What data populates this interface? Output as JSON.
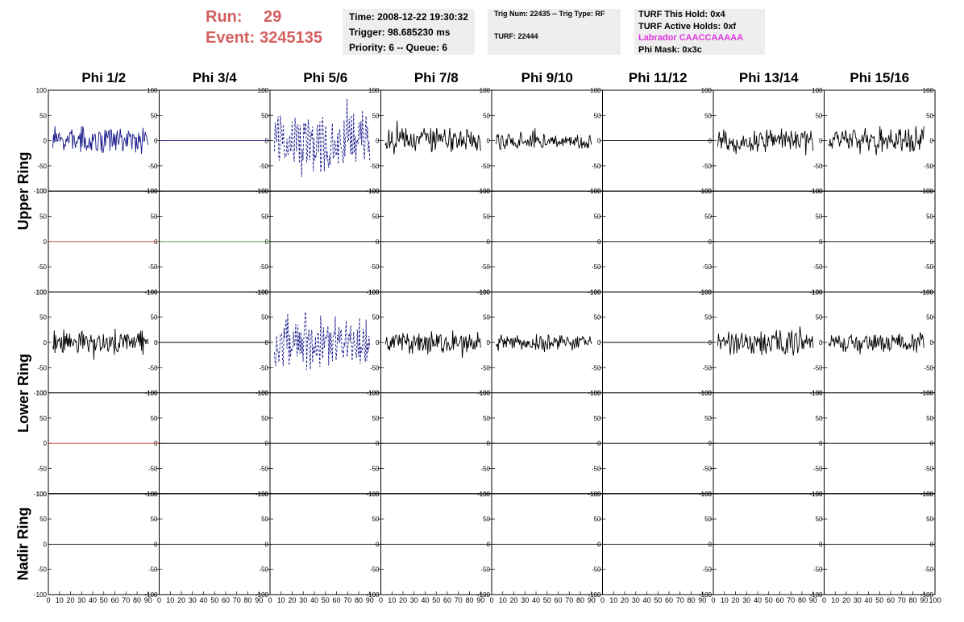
{
  "header": {
    "run_label": "Run:",
    "run_value": "29",
    "event_label": "Event:",
    "event_value": "3245135",
    "time": "Time: 2008-12-22 19:30:32",
    "trigger": "Trigger: 98.685230 ms",
    "priority": "Priority: 6 -- Queue: 6",
    "trig_num": "Trig Num: 22435 -- Trig Type: RF",
    "turf": "TURF: 22444",
    "turf_this_hold": "TURF This Hold: 0x4",
    "turf_active_holds": "TURF Active Holds: 0xf",
    "labrador": "Labrador CAACCAAAAA",
    "phi_mask": "Phi Mask: 0x3c"
  },
  "columns": [
    "Phi 1/2",
    "Phi 3/4",
    "Phi 5/6",
    "Phi 7/8",
    "Phi 9/10",
    "Phi 11/12",
    "Phi 13/14",
    "Phi 15/16"
  ],
  "rings": [
    "Upper Ring",
    "Lower Ring",
    "Nadir Ring"
  ],
  "colors": {
    "title_red": "#d35f5f",
    "labrador_magenta": "#e033e0",
    "trace_blue": "#1a1a8c",
    "trace_red": "#c83232",
    "trace_green": "#32a032",
    "trace_black": "#000000",
    "info_box_bg": "#eeeeee"
  },
  "chart_data": {
    "type": "line",
    "grid_rows": 5,
    "grid_cols": 8,
    "ylim": [
      -100,
      100
    ],
    "xlim": [
      0,
      100
    ],
    "y_ticks": [
      "100",
      "50",
      "0",
      "-50",
      "-100"
    ],
    "x_ticks": [
      "0",
      "10",
      "20",
      "30",
      "40",
      "50",
      "60",
      "70",
      "80",
      "90",
      "100"
    ],
    "panels": [
      {
        "row": 0,
        "col": 0,
        "style": "noise",
        "amplitude": 30,
        "color": "#1a1a8c"
      },
      {
        "row": 0,
        "col": 1,
        "style": "flat",
        "color": "#1a1a8c"
      },
      {
        "row": 0,
        "col": 2,
        "style": "dashed-noise",
        "amplitude": 70,
        "color": "#1a1a8c"
      },
      {
        "row": 0,
        "col": 3,
        "style": "noise",
        "amplitude": 28,
        "color": "#000000"
      },
      {
        "row": 0,
        "col": 4,
        "style": "noise",
        "amplitude": 18,
        "color": "#000000"
      },
      {
        "row": 0,
        "col": 5,
        "style": "flat",
        "color": "#000000"
      },
      {
        "row": 0,
        "col": 6,
        "style": "noise",
        "amplitude": 25,
        "color": "#000000"
      },
      {
        "row": 0,
        "col": 7,
        "style": "noise",
        "amplitude": 30,
        "color": "#000000"
      },
      {
        "row": 1,
        "col": 0,
        "style": "flat",
        "color": "#c83232"
      },
      {
        "row": 1,
        "col": 1,
        "style": "flat",
        "color": "#32a032"
      },
      {
        "row": 1,
        "col": 2,
        "style": "flat",
        "color": "#000000"
      },
      {
        "row": 1,
        "col": 3,
        "style": "flat",
        "color": "#000000"
      },
      {
        "row": 1,
        "col": 4,
        "style": "flat",
        "color": "#000000"
      },
      {
        "row": 1,
        "col": 5,
        "style": "flat",
        "color": "#000000"
      },
      {
        "row": 1,
        "col": 6,
        "style": "flat",
        "color": "#000000"
      },
      {
        "row": 1,
        "col": 7,
        "style": "flat",
        "color": "#000000"
      },
      {
        "row": 2,
        "col": 0,
        "style": "noise",
        "amplitude": 28,
        "color": "#000000"
      },
      {
        "row": 2,
        "col": 1,
        "style": "flat",
        "color": "#000000"
      },
      {
        "row": 2,
        "col": 2,
        "style": "dashed-noise",
        "amplitude": 60,
        "color": "#1a1a8c"
      },
      {
        "row": 2,
        "col": 3,
        "style": "noise",
        "amplitude": 25,
        "color": "#000000"
      },
      {
        "row": 2,
        "col": 4,
        "style": "noise",
        "amplitude": 18,
        "color": "#000000"
      },
      {
        "row": 2,
        "col": 5,
        "style": "flat",
        "color": "#000000"
      },
      {
        "row": 2,
        "col": 6,
        "style": "noise",
        "amplitude": 28,
        "color": "#000000"
      },
      {
        "row": 2,
        "col": 7,
        "style": "noise",
        "amplitude": 22,
        "color": "#000000"
      },
      {
        "row": 3,
        "col": 0,
        "style": "flat",
        "color": "#c83232"
      },
      {
        "row": 3,
        "col": 1,
        "style": "flat",
        "color": "#000000"
      },
      {
        "row": 3,
        "col": 2,
        "style": "flat",
        "color": "#000000"
      },
      {
        "row": 3,
        "col": 3,
        "style": "flat",
        "color": "#000000"
      },
      {
        "row": 3,
        "col": 4,
        "style": "flat",
        "color": "#000000"
      },
      {
        "row": 3,
        "col": 5,
        "style": "flat",
        "color": "#000000"
      },
      {
        "row": 3,
        "col": 6,
        "style": "flat",
        "color": "#000000"
      },
      {
        "row": 3,
        "col": 7,
        "style": "flat",
        "color": "#000000"
      },
      {
        "row": 4,
        "col": 0,
        "style": "flat",
        "color": "#000000"
      },
      {
        "row": 4,
        "col": 1,
        "style": "flat",
        "color": "#000000"
      },
      {
        "row": 4,
        "col": 2,
        "style": "flat",
        "color": "#000000"
      },
      {
        "row": 4,
        "col": 3,
        "style": "flat",
        "color": "#000000"
      },
      {
        "row": 4,
        "col": 4,
        "style": "flat",
        "color": "#000000"
      },
      {
        "row": 4,
        "col": 5,
        "style": "flat",
        "color": "#000000"
      },
      {
        "row": 4,
        "col": 6,
        "style": "flat",
        "color": "#000000"
      },
      {
        "row": 4,
        "col": 7,
        "style": "flat",
        "color": "#000000"
      }
    ]
  }
}
